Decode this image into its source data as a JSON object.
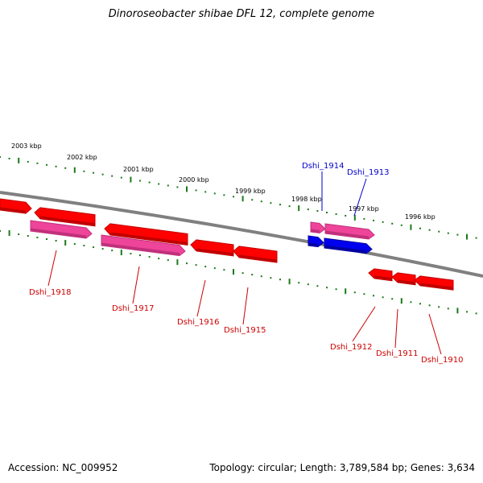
{
  "header": {
    "title": "Dinoroseobacter shibae DFL 12, complete genome"
  },
  "footer": {
    "accession": "Accession: NC_009952",
    "summary": "Topology: circular; Length: 3,789,584 bp; Genes: 3,634"
  },
  "colors": {
    "backbone": "#808080",
    "ticks": "#1a7a1a",
    "gene_red": "#ff0000",
    "gene_red_dark": "#c00000",
    "gene_pink": "#ee4499",
    "gene_pink_dark": "#c0307a",
    "gene_blue": "#0000ee",
    "gene_blue_dark": "#0000a0",
    "label_red": "#cc0000",
    "label_blue": "#0000cc"
  },
  "scale_labels": [
    "2003 kbp",
    "2002 kbp",
    "2001 kbp",
    "2000 kbp",
    "1999 kbp",
    "1998 kbp",
    "1997 kbp",
    "1996 kbp"
  ],
  "gene_labels": [
    {
      "text": "Dshi_1918",
      "color": "red"
    },
    {
      "text": "Dshi_1917",
      "color": "red"
    },
    {
      "text": "Dshi_1916",
      "color": "red"
    },
    {
      "text": "Dshi_1915",
      "color": "red"
    },
    {
      "text": "Dshi_1914",
      "color": "blue"
    },
    {
      "text": "Dshi_1913",
      "color": "blue"
    },
    {
      "text": "Dshi_1912",
      "color": "red"
    },
    {
      "text": "Dshi_1911",
      "color": "red"
    },
    {
      "text": "Dshi_1910",
      "color": "red"
    }
  ]
}
